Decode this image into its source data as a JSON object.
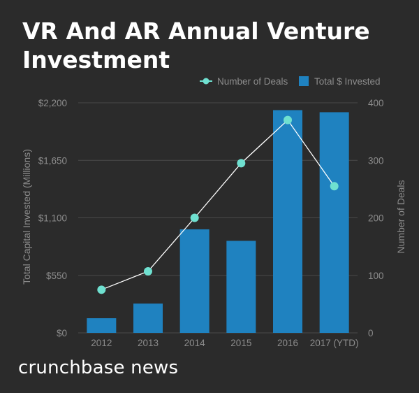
{
  "colors": {
    "background": "#2b2b2b",
    "bar": "#1f82c0",
    "line": "#ffffff",
    "marker": "#6fe0d0",
    "axis_text": "#8c8c8c",
    "grid": "#4a4a4a"
  },
  "brand": "crunchbase news",
  "chart_data": {
    "type": "bar",
    "title": "VR And AR Annual Venture Investment",
    "categories": [
      "2012",
      "2013",
      "2014",
      "2015",
      "2016",
      "2017 (YTD)"
    ],
    "series": [
      {
        "name": "Total $ Invested",
        "type": "bar",
        "axis": "left",
        "values": [
          140,
          280,
          990,
          880,
          2130,
          2110
        ]
      },
      {
        "name": "Number of Deals",
        "type": "line",
        "axis": "right",
        "values": [
          75,
          107,
          200,
          295,
          370,
          255
        ]
      }
    ],
    "ylabel": "Total Capital Invested (Millions)",
    "ylabel_right": "Number of Deals",
    "ylim": [
      0,
      2200
    ],
    "ylim_right": [
      0,
      400
    ],
    "yticks": [
      "$0",
      "$550",
      "$1,100",
      "$1,650",
      "$2,200"
    ],
    "yticks_right": [
      "0",
      "100",
      "200",
      "300",
      "400"
    ],
    "legend_position": "top-right",
    "grid": true
  }
}
